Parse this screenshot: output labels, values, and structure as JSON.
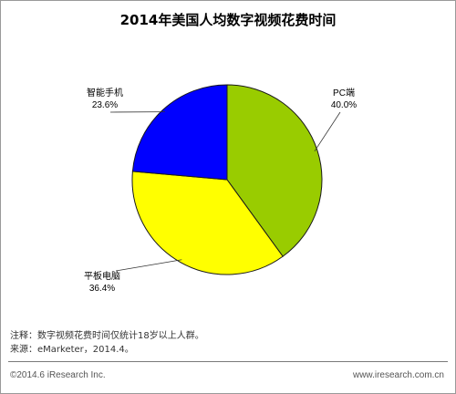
{
  "title": "2014年美国人均数字视频花费时间",
  "chart_data": {
    "type": "pie",
    "title": "2014年美国人均数字视频花费时间",
    "slices": [
      {
        "label": "PC端",
        "value": 40.0,
        "value_text": "40.0%",
        "color": "#99cc00"
      },
      {
        "label": "平板电脑",
        "value": 36.4,
        "value_text": "36.4%",
        "color": "#ffff00"
      },
      {
        "label": "智能手机",
        "value": 23.6,
        "value_text": "23.6%",
        "color": "#0000ff"
      }
    ],
    "start": "12 o'clock",
    "direction": "clockwise",
    "legend": "none"
  },
  "notes": {
    "note": "注释：数字视频花费时间仅统计18岁以上人群。",
    "source": "来源：eMarketer，2014.4。"
  },
  "footer": {
    "copyright": "©2014.6 iResearch Inc.",
    "website": "www.iresearch.com.cn"
  }
}
